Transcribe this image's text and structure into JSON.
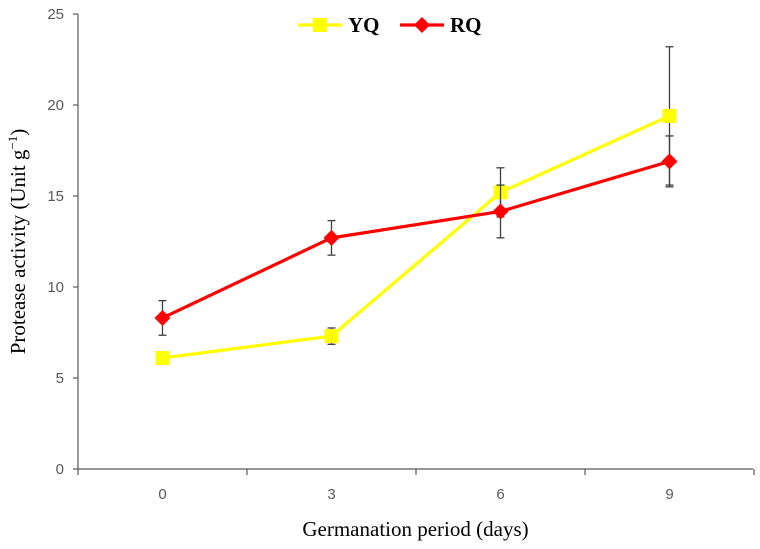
{
  "chart_data": {
    "type": "line",
    "title": "",
    "xlabel": "Germanation period (days)",
    "ylabel": {
      "main": "Protease activity (Unit g",
      "superscript": "−1",
      "close": ")"
    },
    "x": [
      0,
      3,
      6,
      9
    ],
    "x_tick_labels": [
      "0",
      "3",
      "6",
      "9"
    ],
    "ylim": [
      0,
      25
    ],
    "y_ticks": [
      0,
      5,
      10,
      15,
      20,
      25
    ],
    "y_tick_labels": [
      "0",
      "5",
      "10",
      "15",
      "20",
      "25"
    ],
    "grid": false,
    "legend_position": "top-center",
    "series": [
      {
        "name": "YQ",
        "color": "#ffff00",
        "marker": "square",
        "values": [
          6.1,
          7.3,
          15.2,
          19.4
        ],
        "errors": [
          0.2,
          0.45,
          1.35,
          3.8
        ]
      },
      {
        "name": "RQ",
        "color": "#ff0000",
        "marker": "diamond",
        "values": [
          8.3,
          12.7,
          14.15,
          16.9
        ],
        "errors": [
          0.95,
          0.95,
          1.45,
          1.4
        ]
      }
    ],
    "axis_color": "#595959",
    "error_bar_color": "#404040"
  }
}
